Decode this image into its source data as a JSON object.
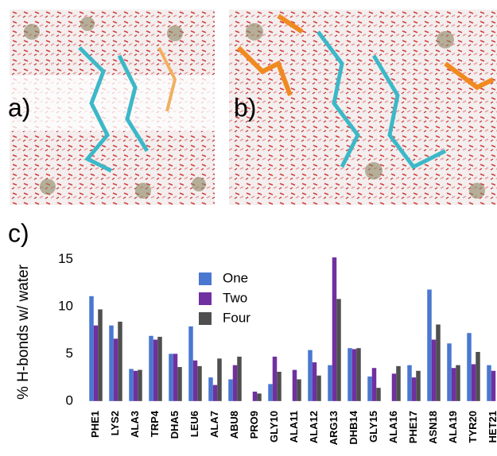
{
  "panel_labels": [
    "a)",
    "b)"
  ],
  "chart_data": {
    "type": "bar",
    "panel_label": "c)",
    "y_label": "% H-bonds w/ water",
    "categories": [
      "PHE1",
      "LYS2",
      "ALA3",
      "TRP4",
      "DHA5",
      "LEU6",
      "ALA7",
      "ABU8",
      "PRO9",
      "GLY10",
      "ALA11",
      "ALA12",
      "ARG13",
      "DHB14",
      "GLY15",
      "ALA16",
      "PHE17",
      "ASN18",
      "ALA19",
      "TYR20",
      "HET21"
    ],
    "series": [
      {
        "name": "One",
        "color": "#4a78d0",
        "values": [
          11.1,
          8.0,
          3.4,
          6.9,
          5.0,
          7.9,
          2.5,
          2.3,
          0,
          1.8,
          0,
          5.4,
          3.8,
          5.6,
          2.6,
          0,
          3.8,
          11.8,
          6.1,
          7.2,
          3.8
        ]
      },
      {
        "name": "Two",
        "color": "#7030a0",
        "values": [
          8.0,
          6.6,
          3.2,
          6.5,
          5.0,
          4.3,
          1.7,
          3.8,
          1.0,
          4.7,
          3.3,
          4.1,
          15.2,
          5.5,
          3.5,
          2.9,
          2.5,
          6.5,
          3.5,
          3.9,
          3.2
        ]
      },
      {
        "name": "Four",
        "color": "#4f4f4f",
        "values": [
          9.7,
          8.4,
          3.3,
          6.8,
          3.6,
          3.7,
          4.5,
          4.7,
          0.8,
          3.1,
          2.3,
          2.7,
          10.8,
          5.6,
          1.4,
          3.7,
          3.2,
          8.1,
          3.8,
          5.2,
          null
        ]
      }
    ],
    "ylim": [
      -0.6,
      15.2
    ],
    "yticks": [
      0,
      5,
      10,
      15
    ],
    "grid": false,
    "legend": "top-center"
  }
}
